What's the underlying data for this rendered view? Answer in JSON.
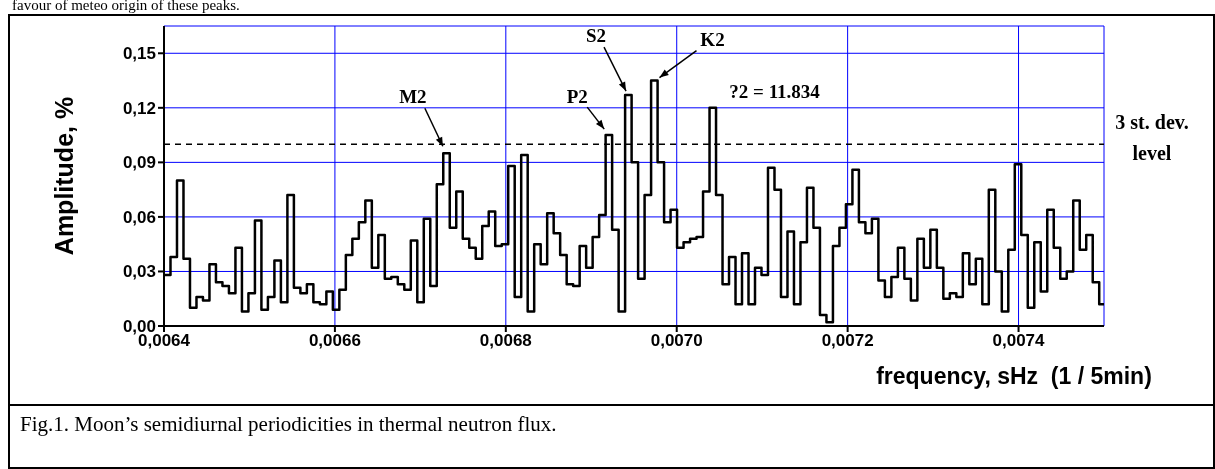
{
  "chart_data": {
    "type": "step",
    "xlabel": "frequency, sHz  (1 / 5min)",
    "ylabel": "Amplitude, %",
    "xlim": [
      0.0064,
      0.0075
    ],
    "ylim": [
      0,
      0.165
    ],
    "xticks": [
      {
        "value": 0.0064,
        "label": "0,0064"
      },
      {
        "value": 0.0066,
        "label": "0,0066"
      },
      {
        "value": 0.0068,
        "label": "0,0068"
      },
      {
        "value": 0.007,
        "label": "0,0070"
      },
      {
        "value": 0.0072,
        "label": "0,0072"
      },
      {
        "value": 0.0074,
        "label": "0,0074"
      }
    ],
    "yticks": [
      {
        "value": 0,
        "label": "0,00"
      },
      {
        "value": 0.03,
        "label": "0,03"
      },
      {
        "value": 0.06,
        "label": "0,06"
      },
      {
        "value": 0.09,
        "label": "0,09"
      },
      {
        "value": 0.12,
        "label": "0,12"
      },
      {
        "value": 0.15,
        "label": "0,15"
      }
    ],
    "grid": true,
    "line_style": "solid",
    "x": [
      0.0064,
      0.0064076,
      0.0064152,
      0.0064228,
      0.0064304,
      0.006438,
      0.0064456,
      0.0064532,
      0.0064608,
      0.0064684,
      0.006476,
      0.0064836,
      0.0064912,
      0.0064988,
      0.0065064,
      0.006514,
      0.0065216,
      0.0065292,
      0.0065368,
      0.0065444,
      0.006552,
      0.0065596,
      0.0065672,
      0.0065748,
      0.0065824,
      0.00659,
      0.0065976,
      0.0066052,
      0.0066128,
      0.0066204,
      0.006628,
      0.0066356,
      0.0066432,
      0.0066508,
      0.0066584,
      0.006666,
      0.0066736,
      0.0066812,
      0.0066888,
      0.0066964,
      0.006704,
      0.0067116,
      0.0067192,
      0.0067268,
      0.0067344,
      0.006742,
      0.0067496,
      0.0067572,
      0.0067648,
      0.0067724,
      0.00678,
      0.0067876,
      0.0067952,
      0.0068028,
      0.0068104,
      0.006818,
      0.0068256,
      0.0068332,
      0.0068408,
      0.0068484,
      0.006856,
      0.0068636,
      0.0068712,
      0.0068788,
      0.0068864,
      0.006894,
      0.0069016,
      0.0069092,
      0.0069168,
      0.0069244,
      0.006932,
      0.0069396,
      0.0069472,
      0.0069548,
      0.0069624,
      0.00697,
      0.0069776,
      0.0069852,
      0.0069928,
      0.0070004,
      0.007008,
      0.0070156,
      0.0070232,
      0.0070308,
      0.0070384,
      0.007046,
      0.0070536,
      0.0070612,
      0.0070688,
      0.0070764,
      0.007084,
      0.0070916,
      0.0070992,
      0.0071068,
      0.0071144,
      0.007122,
      0.0071296,
      0.0071372,
      0.0071448,
      0.0071524,
      0.00716,
      0.0071676,
      0.0071752,
      0.0071828,
      0.0071904,
      0.007198,
      0.0072056,
      0.0072132,
      0.0072208,
      0.0072284,
      0.007236,
      0.0072436,
      0.0072512,
      0.0072588,
      0.0072664,
      0.007274,
      0.0072816,
      0.0072892,
      0.0072968,
      0.0073044,
      0.007312,
      0.0073196,
      0.0073272,
      0.0073348,
      0.0073424,
      0.00735,
      0.0073576,
      0.0073652,
      0.0073728,
      0.0073804,
      0.007388,
      0.0073956,
      0.0074032,
      0.0074108,
      0.0074184,
      0.007426,
      0.0074336,
      0.0074412,
      0.0074488,
      0.0074564,
      0.007464,
      0.0074716,
      0.0074792,
      0.0074868,
      0.0074944,
      0.0075
    ],
    "series": [
      {
        "color": "#000000",
        "values": [
          0.028,
          0.038,
          0.08,
          0.037,
          0.01,
          0.016,
          0.014,
          0.034,
          0.024,
          0.022,
          0.018,
          0.043,
          0.008,
          0.018,
          0.058,
          0.009,
          0.016,
          0.036,
          0.013,
          0.072,
          0.021,
          0.018,
          0.023,
          0.013,
          0.012,
          0.019,
          0.009,
          0.02,
          0.039,
          0.048,
          0.057,
          0.069,
          0.032,
          0.05,
          0.026,
          0.027,
          0.023,
          0.02,
          0.047,
          0.013,
          0.059,
          0.022,
          0.078,
          0.095,
          0.054,
          0.074,
          0.048,
          0.043,
          0.037,
          0.055,
          0.063,
          0.044,
          0.045,
          0.088,
          0.016,
          0.094,
          0.008,
          0.045,
          0.034,
          0.062,
          0.051,
          0.039,
          0.023,
          0.022,
          0.044,
          0.032,
          0.049,
          0.061,
          0.105,
          0.053,
          0.008,
          0.127,
          0.09,
          0.026,
          0.072,
          0.135,
          0.09,
          0.057,
          0.064,
          0.043,
          0.046,
          0.048,
          0.049,
          0.074,
          0.12,
          0.072,
          0.023,
          0.038,
          0.012,
          0.04,
          0.012,
          0.032,
          0.028,
          0.087,
          0.075,
          0.016,
          0.052,
          0.012,
          0.046,
          0.076,
          0.054,
          0.006,
          0.002,
          0.044,
          0.054,
          0.067,
          0.086,
          0.057,
          0.051,
          0.059,
          0.025,
          0.016,
          0.027,
          0.043,
          0.026,
          0.014,
          0.048,
          0.032,
          0.053,
          0.032,
          0.015,
          0.018,
          0.016,
          0.04,
          0.023,
          0.037,
          0.012,
          0.075,
          0.03,
          0.008,
          0.042,
          0.089,
          0.05,
          0.01,
          0.046,
          0.019,
          0.064,
          0.043,
          0.026,
          0.03,
          0.069,
          0.042,
          0.05,
          0.024,
          0.012,
          0.012
        ]
      }
    ],
    "ref_lines": [
      {
        "axis": "y",
        "value": 0.1,
        "label": "3 st. dev. level",
        "color": "#000000",
        "line_style": "dashed"
      }
    ],
    "annotations": [
      {
        "text": "M2",
        "x": 0.006731,
        "y": 0.095
      },
      {
        "text": "P2",
        "x": 0.006921,
        "y": 0.105
      },
      {
        "text": "S2",
        "x": 0.006943,
        "y": 0.127
      },
      {
        "text": "K2",
        "x": 0.006974,
        "y": 0.135
      },
      {
        "text": "?2 = 11.834",
        "x": 0.007042,
        "y": 0.12
      },
      "favour of meteo origin of these peaks.",
      "Fig.1. Moon’s semidiurnal periodicities in thermal neutron flux."
    ]
  }
}
